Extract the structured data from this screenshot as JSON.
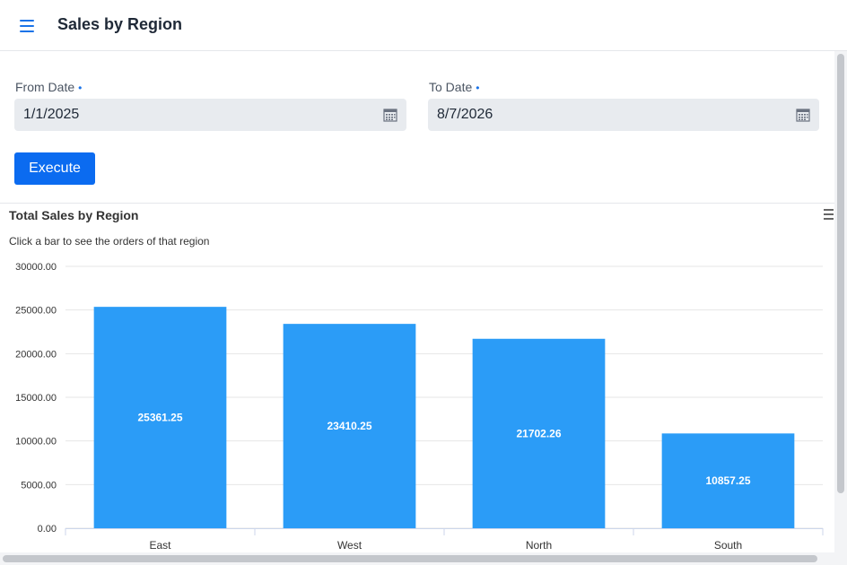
{
  "header": {
    "title": "Sales by Region",
    "menu_icon": "hamburger-menu-icon",
    "accent_color": "#1a73e8"
  },
  "form": {
    "from": {
      "label": "From Date",
      "required_marker": "•",
      "value": "1/1/2025",
      "icon": "calendar-icon"
    },
    "to": {
      "label": "To Date",
      "required_marker": "•",
      "value": "8/7/2026",
      "icon": "calendar-icon"
    },
    "execute_label": "Execute",
    "button_color": "#0b6bf0"
  },
  "chart_menu_icon": "chart-context-menu-icon",
  "chart_data": {
    "type": "bar",
    "title": "Total Sales by Region",
    "subtitle": "Click a bar to see the orders of that region",
    "categories": [
      "East",
      "West",
      "North",
      "South"
    ],
    "values": [
      25361.25,
      23410.25,
      21702.26,
      10857.25
    ],
    "data_labels": [
      "25361.25",
      "23410.25",
      "21702.26",
      "10857.25"
    ],
    "ylim": [
      0,
      30000
    ],
    "y_ticks": [
      "0.00",
      "5000.00",
      "10000.00",
      "15000.00",
      "20000.00",
      "25000.00",
      "30000.00"
    ],
    "grid": true,
    "bar_color": "#2b9cf7"
  }
}
